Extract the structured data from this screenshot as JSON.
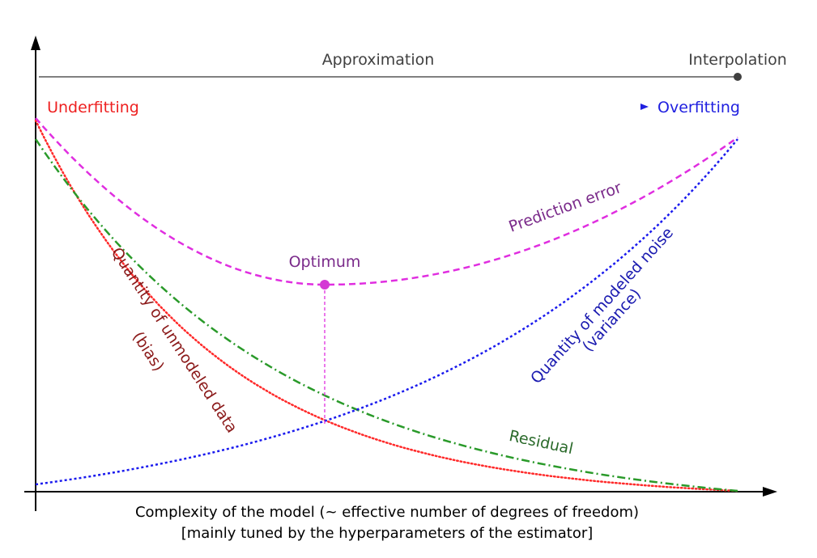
{
  "chart_data": {
    "type": "line",
    "xlabel": "Complexity of the model (~ effective number of degrees of freedom)",
    "xlabel_sub": "[mainly tuned by the hyperparameters of the estimator]",
    "top_scale": {
      "left_label": "",
      "center_label": "Approximation",
      "right_label": "Interpolation"
    },
    "fit_scale": {
      "left_label": "Underfitting",
      "right_label": "Overfitting"
    },
    "optimum": {
      "label": "Optimum"
    },
    "series": [
      {
        "name": "Prediction error",
        "style": "dashed",
        "color": "#e02ee0",
        "label_color": "#7a2a8a"
      },
      {
        "name": "Residual",
        "style": "dash-dot",
        "color": "#2a9a2a",
        "label_color": "#2a6a2a"
      },
      {
        "name": "Quantity of unmodeled data",
        "name_line2": "(bias)",
        "style": "dotted",
        "color": "#ff2a2a",
        "label_color": "#8b1a1a"
      },
      {
        "name": "Quantity of modeled noise",
        "name_line2": "(variance)",
        "style": "dotted",
        "color": "#1a1aee",
        "label_color": "#1a1ab0"
      }
    ],
    "grid": false,
    "axes_ticks": false
  }
}
